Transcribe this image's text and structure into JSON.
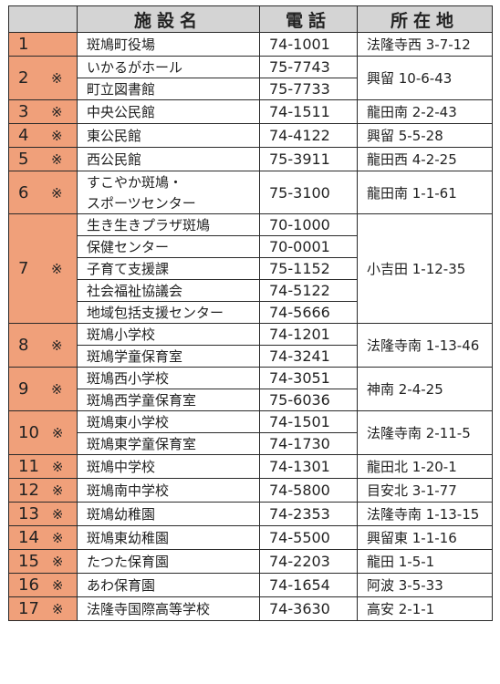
{
  "headers": {
    "name": "施設名",
    "tel": "電話",
    "address": "所在地"
  },
  "facilities": [
    {
      "num": "1",
      "mark": "",
      "names": [
        "斑鳩町役場"
      ],
      "tels": [
        "74-1001"
      ],
      "address": "法隆寺西 3-7-12"
    },
    {
      "num": "2",
      "mark": "※",
      "names": [
        "いかるがホール",
        "町立図書館"
      ],
      "tels": [
        "75-7743",
        "75-7733"
      ],
      "address": "興留 10-6-43"
    },
    {
      "num": "3",
      "mark": "※",
      "names": [
        "中央公民館"
      ],
      "tels": [
        "74-1511"
      ],
      "address": "龍田南 2-2-43"
    },
    {
      "num": "4",
      "mark": "※",
      "names": [
        "東公民館"
      ],
      "tels": [
        "74-4122"
      ],
      "address": "興留 5-5-28"
    },
    {
      "num": "5",
      "mark": "※",
      "names": [
        "西公民館"
      ],
      "tels": [
        "75-3911"
      ],
      "address": "龍田西 4-2-25"
    },
    {
      "num": "6",
      "mark": "※",
      "names": [
        "すこやか斑鳩・",
        "スポーツセンター"
      ],
      "tels": [
        "75-3100"
      ],
      "address": "龍田南 1-1-61"
    },
    {
      "num": "7",
      "mark": "※",
      "names": [
        "生き生きプラザ斑鳩",
        "保健センター",
        "子育て支援課",
        "社会福祉協議会",
        "地域包括支援センター"
      ],
      "tels": [
        "70-1000",
        "70-0001",
        "75-1152",
        "74-5122",
        "74-5666"
      ],
      "address": "小吉田 1-12-35"
    },
    {
      "num": "8",
      "mark": "※",
      "names": [
        "斑鳩小学校",
        "斑鳩学童保育室"
      ],
      "tels": [
        "74-1201",
        "74-3241"
      ],
      "address": "法隆寺南 1-13-46"
    },
    {
      "num": "9",
      "mark": "※",
      "names": [
        "斑鳩西小学校",
        "斑鳩西学童保育室"
      ],
      "tels": [
        "74-3051",
        "75-6036"
      ],
      "address": "神南 2-4-25"
    },
    {
      "num": "10",
      "mark": "※",
      "names": [
        "斑鳩東小学校",
        "斑鳩東学童保育室"
      ],
      "tels": [
        "74-1501",
        "74-1730"
      ],
      "address": "法隆寺南 2-11-5"
    },
    {
      "num": "11",
      "mark": "※",
      "names": [
        "斑鳩中学校"
      ],
      "tels": [
        "74-1301"
      ],
      "address": "龍田北 1-20-1"
    },
    {
      "num": "12",
      "mark": "※",
      "names": [
        "斑鳩南中学校"
      ],
      "tels": [
        "74-5800"
      ],
      "address": "目安北 3-1-77"
    },
    {
      "num": "13",
      "mark": "※",
      "names": [
        "斑鳩幼稚園"
      ],
      "tels": [
        "74-2353"
      ],
      "address": "法隆寺南 1-13-15"
    },
    {
      "num": "14",
      "mark": "※",
      "names": [
        "斑鳩東幼稚園"
      ],
      "tels": [
        "74-5500"
      ],
      "address": "興留東 1-1-16"
    },
    {
      "num": "15",
      "mark": "※",
      "names": [
        "たつた保育園"
      ],
      "tels": [
        "74-2203"
      ],
      "address": "龍田 1-5-1"
    },
    {
      "num": "16",
      "mark": "※",
      "names": [
        "あわ保育園"
      ],
      "tels": [
        "74-1654"
      ],
      "address": "阿波 3-5-33"
    },
    {
      "num": "17",
      "mark": "※",
      "names": [
        "法隆寺国際高等学校"
      ],
      "tels": [
        "74-3630"
      ],
      "address": "高安 2-1-1"
    }
  ],
  "colors": {
    "number_cell": "#f0a07a",
    "header_bg": "#d4d4d4",
    "border": "#2a2a2a"
  }
}
